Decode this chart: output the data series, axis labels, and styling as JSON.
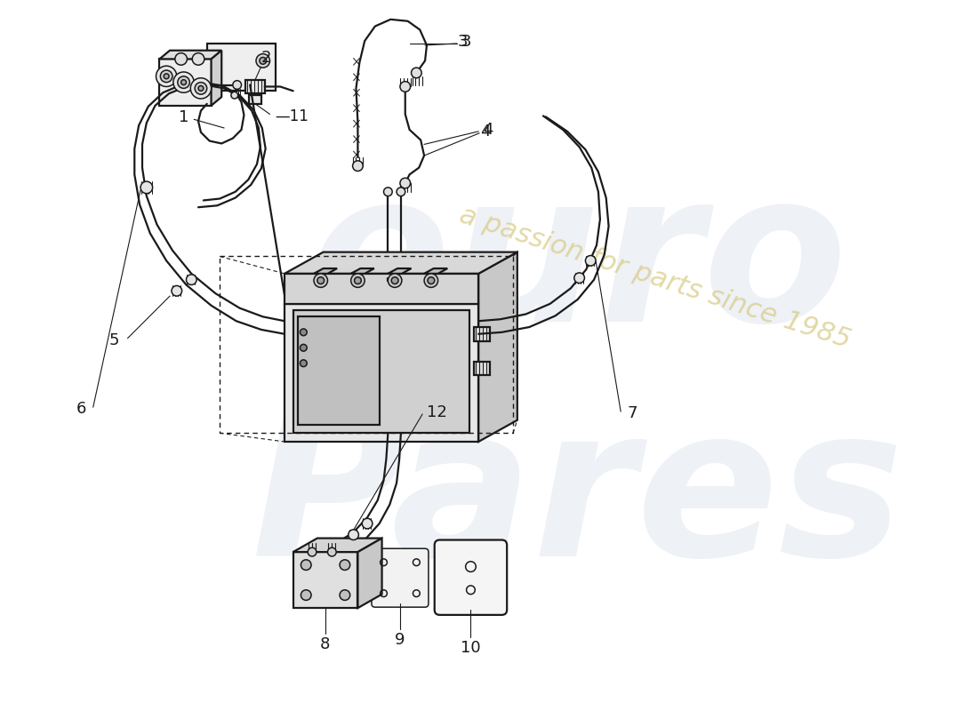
{
  "bg_color": "#ffffff",
  "lc": "#1a1a1a",
  "wm1_color": "#c5cfe0",
  "wm2_color": "#d8cc88",
  "figsize": [
    11.0,
    8.0
  ],
  "dpi": 100,
  "part_labels": [
    "1",
    "2",
    "3",
    "4",
    "5",
    "6",
    "7",
    "8",
    "9",
    "10",
    "11",
    "12"
  ]
}
